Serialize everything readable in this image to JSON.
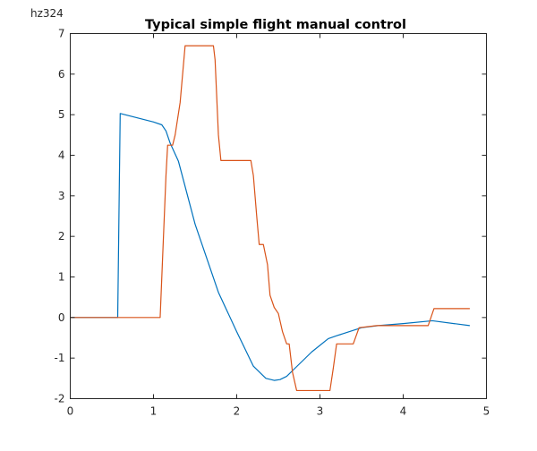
{
  "corner_label": "hz324",
  "chart_data": {
    "type": "line",
    "title": "Typical simple flight manual control",
    "xlabel": "",
    "ylabel": "",
    "xlim": [
      0,
      5
    ],
    "ylim": [
      -2,
      7
    ],
    "xticks": [
      0,
      1,
      2,
      3,
      4,
      5
    ],
    "yticks": [
      -2,
      -1,
      0,
      1,
      2,
      3,
      4,
      5,
      6,
      7
    ],
    "grid": false,
    "legend": "none",
    "series": [
      {
        "color": "#0072BD",
        "x": [
          0,
          0.57,
          0.6,
          1.0,
          1.1,
          1.15,
          1.2,
          1.3,
          1.5,
          1.78,
          2.0,
          2.2,
          2.35,
          2.45,
          2.52,
          2.6,
          2.7,
          2.9,
          3.1,
          3.2,
          3.5,
          3.7,
          4.0,
          4.35,
          4.8
        ],
        "y": [
          0,
          0,
          5.03,
          4.82,
          4.75,
          4.6,
          4.3,
          3.85,
          2.3,
          0.62,
          -0.35,
          -1.2,
          -1.5,
          -1.55,
          -1.53,
          -1.45,
          -1.25,
          -0.85,
          -0.52,
          -0.45,
          -0.25,
          -0.2,
          -0.15,
          -0.08,
          -0.2
        ]
      },
      {
        "color": "#D95319",
        "x": [
          0,
          1.08,
          1.11,
          1.15,
          1.17,
          1.23,
          1.26,
          1.32,
          1.38,
          1.5,
          1.72,
          1.74,
          1.78,
          1.81,
          2.17,
          2.2,
          2.24,
          2.27,
          2.32,
          2.37,
          2.4,
          2.45,
          2.5,
          2.55,
          2.6,
          2.63,
          2.67,
          2.72,
          3.12,
          3.16,
          3.2,
          3.4,
          3.47,
          3.68,
          4.3,
          4.37,
          4.8
        ],
        "y": [
          0,
          0,
          1.5,
          3.5,
          4.25,
          4.25,
          4.5,
          5.3,
          6.7,
          6.7,
          6.7,
          6.35,
          4.5,
          3.87,
          3.87,
          3.5,
          2.5,
          1.8,
          1.8,
          1.3,
          0.55,
          0.25,
          0.1,
          -0.35,
          -0.65,
          -0.65,
          -1.35,
          -1.8,
          -1.8,
          -1.25,
          -0.65,
          -0.65,
          -0.25,
          -0.2,
          -0.2,
          0.22,
          0.22
        ]
      }
    ]
  }
}
